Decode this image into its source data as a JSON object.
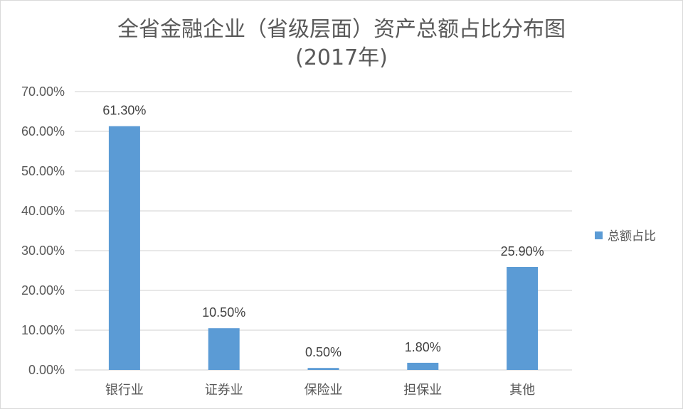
{
  "chart_data": {
    "type": "bar",
    "title": "全省金融企业（省级层面）资产总额占比分布图",
    "subtitle": "(2017年)",
    "xlabel": "",
    "ylabel": "",
    "categories": [
      "银行业",
      "证券业",
      "保险业",
      "担保业",
      "其他"
    ],
    "series": [
      {
        "name": "总额占比",
        "values": [
          61.3,
          10.5,
          0.5,
          1.8,
          25.9
        ],
        "value_labels": [
          "61.30%",
          "10.50%",
          "0.50%",
          "1.80%",
          "25.90%"
        ],
        "color": "#5b9bd5"
      }
    ],
    "ylim": [
      0,
      70
    ],
    "y_ticks": [
      0,
      10,
      20,
      30,
      40,
      50,
      60,
      70
    ],
    "y_tick_labels": [
      "0.00%",
      "10.00%",
      "20.00%",
      "30.00%",
      "40.00%",
      "50.00%",
      "60.00%",
      "70.00%"
    ],
    "grid": true,
    "legend": "right",
    "colors": {
      "bar": "#5b9bd5",
      "grid": "#d9d9d9",
      "text": "#595959"
    }
  }
}
